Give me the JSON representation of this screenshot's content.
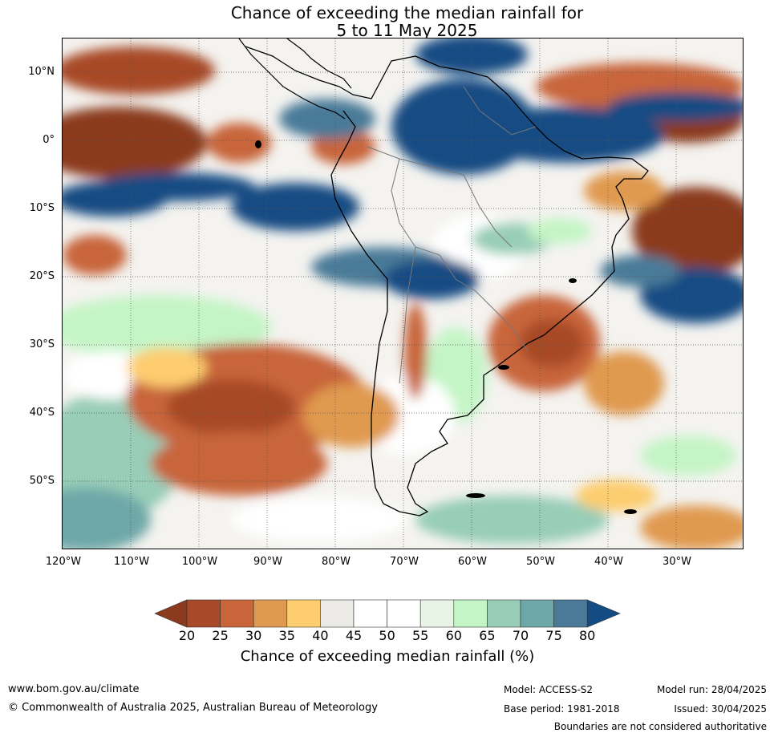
{
  "title": {
    "line1": "Chance of exceeding the median rainfall for",
    "line2": "5 to 11 May 2025"
  },
  "map": {
    "lat_labels": [
      "10°N",
      "0°",
      "10°S",
      "20°S",
      "30°S",
      "40°S",
      "50°S"
    ],
    "lon_labels": [
      "120°W",
      "110°W",
      "100°W",
      "90°W",
      "80°W",
      "70°W",
      "60°W",
      "50°W",
      "40°W",
      "30°W"
    ],
    "lat_range": [
      -60,
      15
    ],
    "lon_range": [
      -120,
      -20
    ],
    "grid": true
  },
  "legend": {
    "title": "Chance of exceeding median rainfall (%)",
    "ticks": [
      "20",
      "25",
      "30",
      "35",
      "40",
      "45",
      "50",
      "55",
      "60",
      "65",
      "70",
      "75",
      "80"
    ],
    "colors": [
      "#8b3a1f",
      "#a84a28",
      "#c8653a",
      "#e09a50",
      "#fdcd6f",
      "#eceae6",
      "#ffffff",
      "#ffffff",
      "#e8f5e6",
      "#c4f5c6",
      "#98cdb8",
      "#6ea7a8",
      "#4a7a98",
      "#134c83"
    ]
  },
  "footer": {
    "website": "www.bom.gov.au/climate",
    "copyright": "© Commonwealth of Australia 2025, Australian Bureau of Meteorology",
    "model": "Model: ACCESS-S2",
    "base_period": "Base period: 1981-2018",
    "model_run": "Model run: 28/04/2025",
    "issued": "Issued: 30/04/2025",
    "disclaimer": "Boundaries are not considered authoritative"
  },
  "colors": {
    "dry_strong": "#8b3a1f",
    "dry": "#c8653a",
    "dry_light": "#e09a50",
    "neutral": "#eceae6",
    "wet_light": "#c4f5c6",
    "wet": "#6ea7a8",
    "wet_strong": "#134c83"
  }
}
